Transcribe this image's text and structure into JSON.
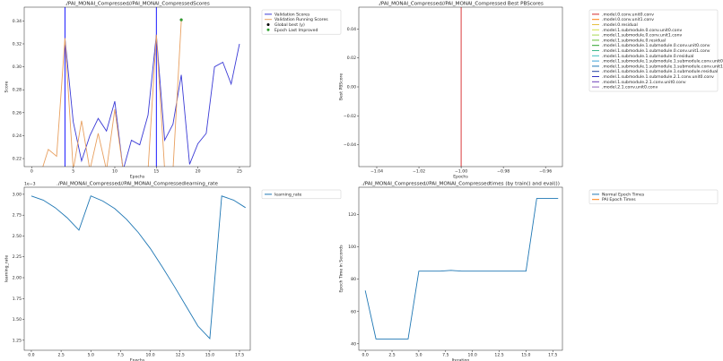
{
  "chart_data": [
    {
      "type": "line",
      "title": "./PAI_MONAI_Compressed//PAI_MONAI_CompressedScores",
      "xlabel": "Epochs",
      "ylabel": "Score",
      "xlim": [
        -0.9,
        26.3
      ],
      "ylim": [
        0.213,
        0.352
      ],
      "xticks": [
        0,
        5,
        10,
        15,
        20,
        25
      ],
      "yticks": [
        0.22,
        0.24,
        0.26,
        0.28,
        {
          "value": 0.3,
          "label": "0.30"
        },
        0.32,
        0.34
      ],
      "legend": "outside upper left",
      "vlines": [
        {
          "x": 4,
          "color": "#0000ff"
        },
        {
          "x": 15,
          "color": "#0000ff"
        }
      ],
      "series": [
        {
          "name": "Validation Scores",
          "color": "#3b3bd6",
          "x": [
            4,
            5,
            6,
            7,
            8,
            9,
            10,
            11,
            12,
            13,
            14,
            15,
            16,
            17,
            18,
            19,
            20,
            21,
            22,
            23,
            24,
            25
          ],
          "values": [
            0.325,
            0.252,
            0.218,
            0.24,
            0.255,
            0.244,
            0.27,
            0.21,
            0.236,
            0.232,
            0.258,
            0.328,
            0.236,
            0.25,
            0.293,
            0.215,
            0.233,
            0.242,
            0.3,
            0.304,
            0.285,
            0.32
          ]
        },
        {
          "name": "Validation Running Scores",
          "color": "#e8a060",
          "x": [
            1,
            2,
            3,
            4,
            5,
            6,
            7,
            8,
            9,
            10,
            11,
            12,
            13,
            14,
            15,
            16,
            17,
            18
          ],
          "values": [
            0.205,
            0.228,
            0.222,
            0.325,
            0.21,
            0.253,
            0.21,
            0.242,
            0.21,
            0.263,
            0.21,
            0.21,
            0.21,
            0.21,
            0.328,
            0.21,
            0.21,
            0.34
          ]
        },
        {
          "name": "Global best (y)",
          "color": "#000000",
          "marker": true,
          "x": [
            18
          ],
          "values": [
            0.341
          ]
        },
        {
          "name": "Epoch Last Improved",
          "color": "#2ca02c",
          "marker": true,
          "x": [
            18
          ],
          "values": [
            0.341
          ]
        }
      ]
    },
    {
      "type": "line",
      "title": "./PAI_MONAI_Compressed//PAI_MONAI_Compressed Best PBScores",
      "xlabel": "Epochs",
      "ylabel": "Best PBScore",
      "xlim": [
        -1.0485,
        -0.952
      ],
      "ylim": [
        -0.055,
        0.055
      ],
      "xticks": [
        {
          "value": -1.04,
          "label": "−1.04"
        },
        {
          "value": -1.02,
          "label": "−1.02"
        },
        {
          "value": -1.0,
          "label": "−1.00"
        },
        {
          "value": -0.98,
          "label": "−0.98"
        },
        {
          "value": -0.96,
          "label": "−0.96"
        }
      ],
      "yticks": [
        {
          "value": -0.04,
          "label": "−0.04"
        },
        {
          "value": -0.02,
          "label": "−0.02"
        },
        {
          "value": 0,
          "label": "0.00"
        },
        0.02,
        0.04
      ],
      "legend": "outside upper left",
      "vlines": [
        {
          "x": -1.0,
          "color": "#d62728"
        }
      ],
      "series": [
        {
          "name": ".model.0.conv.unit0.conv",
          "color": "#d62728"
        },
        {
          "name": ".model.0.conv.unit1.conv",
          "color": "#ff7f0e"
        },
        {
          "name": ".model.0.residual",
          "color": "#e5c040"
        },
        {
          "name": ".model.1.submodule.0.conv.unit0.conv",
          "color": "#d4e04a"
        },
        {
          "name": ".model.1.submodule.0.conv.unit1.conv",
          "color": "#a6d854"
        },
        {
          "name": ".model.1.submodule.0.residual",
          "color": "#66c23a"
        },
        {
          "name": ".model.1.submodule.1.submodule.0.conv.unit0.conv",
          "color": "#2ca02c"
        },
        {
          "name": ".model.1.submodule.1.submodule.0.conv.unit1.conv",
          "color": "#3cb88a"
        },
        {
          "name": ".model.1.submodule.1.submodule.0.residual",
          "color": "#40c0c0"
        },
        {
          "name": ".model.1.submodule.1.submodule.1.submodule.conv.unit0.conv",
          "color": "#3aa0d8"
        },
        {
          "name": ".model.1.submodule.1.submodule.1.submodule.conv.unit1.conv",
          "color": "#1f77b4"
        },
        {
          "name": ".model.1.submodule.1.submodule.1.submodule.residual",
          "color": "#2040a0"
        },
        {
          "name": ".model.1.submodule.1.submodule.2.1.conv.unit0.conv",
          "color": "#3030c0"
        },
        {
          "name": ".model.1.submodule.2.1.conv.unit0.conv",
          "color": "#6a3db8"
        },
        {
          "name": ".model.2.1.conv.unit0.conv",
          "color": "#9467bd"
        }
      ]
    },
    {
      "type": "line",
      "title": "./PAI_MONAI_Compressed//PAI_MONAI_Compressedlearning_rate",
      "xlabel": "Epochs",
      "ylabel": "learning_rate",
      "offset_label": "1e−3",
      "xlim": [
        -0.6,
        18.4
      ],
      "ylim": [
        1.13,
        3.085
      ],
      "xticks": [
        {
          "value": 0,
          "label": "0.0"
        },
        2.5,
        {
          "value": 5,
          "label": "5.0"
        },
        7.5,
        {
          "value": 10,
          "label": "10.0"
        },
        12.5,
        {
          "value": 15,
          "label": "15.0"
        },
        17.5
      ],
      "yticks": [
        1.25,
        {
          "value": 1.5,
          "label": "1.50"
        },
        1.75,
        {
          "value": 2,
          "label": "2.00"
        },
        2.25,
        {
          "value": 2.5,
          "label": "2.50"
        },
        2.75,
        {
          "value": 3,
          "label": "3.00"
        }
      ],
      "legend": "outside upper left",
      "series": [
        {
          "name": "learning_rate",
          "color": "#1f77b4",
          "x": [
            0,
            1,
            2,
            3,
            4,
            5,
            6,
            7,
            8,
            9,
            10,
            11,
            12,
            13,
            14,
            15,
            16,
            17,
            18
          ],
          "values": [
            2.98,
            2.93,
            2.84,
            2.72,
            2.57,
            2.98,
            2.92,
            2.83,
            2.7,
            2.54,
            2.35,
            2.13,
            1.9,
            1.66,
            1.42,
            1.27,
            2.98,
            2.93,
            2.84
          ]
        }
      ]
    },
    {
      "type": "line",
      "title": "./PAI_MONAI_Compressed//PAI_MONAI_Compressedtimes (by train() and eval())",
      "xlabel": "Iteration",
      "ylabel": "Epoch Time in Seconds",
      "xlim": [
        -0.6,
        18.4
      ],
      "ylim": [
        36,
        137
      ],
      "xticks": [
        {
          "value": 0,
          "label": "0.0"
        },
        2.5,
        {
          "value": 5,
          "label": "5.0"
        },
        7.5,
        {
          "value": 10,
          "label": "10.0"
        },
        12.5,
        {
          "value": 15,
          "label": "15.0"
        },
        17.5
      ],
      "yticks": [
        40,
        60,
        80,
        100,
        120
      ],
      "legend": "outside upper left",
      "series": [
        {
          "name": "Normal Epoch Times",
          "color": "#1f77b4",
          "x": [
            0,
            1,
            2,
            3,
            4,
            5,
            6,
            7,
            8,
            9,
            10,
            11,
            12,
            13,
            14,
            15,
            16,
            17,
            18
          ],
          "values": [
            73,
            43,
            43,
            43,
            43,
            85,
            85,
            85,
            85.5,
            85,
            85,
            85,
            85,
            85,
            85,
            85,
            130,
            130,
            130
          ]
        },
        {
          "name": "PAI Epoch Times",
          "color": "#ff7f0e"
        }
      ]
    }
  ]
}
